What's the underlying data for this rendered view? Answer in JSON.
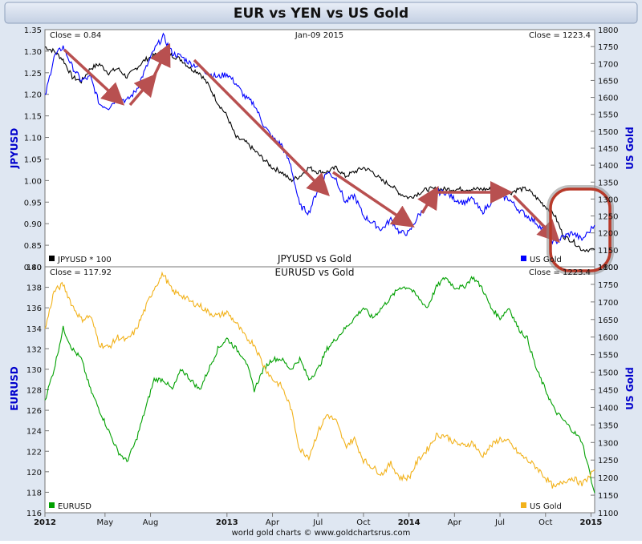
{
  "title": "EUR vs YEN vs US Gold",
  "footer": "world gold charts  © www.goldchartsrus.com",
  "colors": {
    "background": "#dfe7f2",
    "title_bar": "#c5d1e4",
    "plot_bg": "#ffffff",
    "jpy": "#000000",
    "eur": "#00a000",
    "gold_top": "#0000ff",
    "gold_bottom": "#f2b21b",
    "arrow": "#b85050",
    "ellipse": "#b83a2a",
    "axis_label": "#0000cc"
  },
  "x_axis": {
    "ticks": [
      "2012",
      "May",
      "Aug",
      "2013",
      "Apr",
      "Jul",
      "Oct",
      "2014",
      "Apr",
      "Jul",
      "Oct",
      "2015"
    ],
    "bold": [
      "2012",
      "2013",
      "2014",
      "2015"
    ]
  },
  "chart_data": [
    {
      "type": "line",
      "title": "JPYUSD vs Gold",
      "date_label": "Jan-09  2015",
      "left_close": "Close = 0.84",
      "right_close": "Close = 1223.4",
      "ylabel_left": "JPYUSD",
      "ylabel_right": "US Gold",
      "ylim_left": [
        0.8,
        1.35
      ],
      "ylim_right": [
        1100,
        1800
      ],
      "yticks_left": [
        "1.35",
        "1.30",
        "1.25",
        "1.20",
        "1.15",
        "1.10",
        "1.05",
        "1.00",
        "0.95",
        "0.90",
        "0.85",
        "0.80"
      ],
      "yticks_right": [
        "1800",
        "1750",
        "1700",
        "1650",
        "1600",
        "1550",
        "1500",
        "1450",
        "1400",
        "1350",
        "1300",
        "1250",
        "1200",
        "1150",
        "1100"
      ],
      "legend_left": "JPYUSD * 100",
      "legend_right": "US Gold",
      "x": [
        2012.0,
        2012.05,
        2012.1,
        2012.15,
        2012.2,
        2012.25,
        2012.3,
        2012.35,
        2012.4,
        2012.45,
        2012.5,
        2012.55,
        2012.6,
        2012.65,
        2012.7,
        2012.75,
        2012.8,
        2012.85,
        2012.9,
        2012.95,
        2013.0,
        2013.05,
        2013.1,
        2013.15,
        2013.2,
        2013.25,
        2013.3,
        2013.35,
        2013.4,
        2013.45,
        2013.5,
        2013.55,
        2013.6,
        2013.65,
        2013.7,
        2013.75,
        2013.8,
        2013.85,
        2013.9,
        2013.95,
        2014.0,
        2014.05,
        2014.1,
        2014.15,
        2014.2,
        2014.25,
        2014.3,
        2014.35,
        2014.4,
        2014.45,
        2014.5,
        2014.55,
        2014.6,
        2014.65,
        2014.7,
        2014.75,
        2014.8,
        2014.85,
        2014.9,
        2014.95,
        2015.02
      ],
      "series": [
        {
          "name": "JPYUSD * 100",
          "axis": "left",
          "values": [
            1.31,
            1.3,
            1.28,
            1.24,
            1.23,
            1.26,
            1.27,
            1.25,
            1.26,
            1.24,
            1.26,
            1.28,
            1.29,
            1.3,
            1.29,
            1.28,
            1.26,
            1.25,
            1.22,
            1.18,
            1.15,
            1.1,
            1.09,
            1.07,
            1.05,
            1.03,
            1.02,
            1.0,
            1.01,
            1.03,
            1.02,
            1.02,
            1.03,
            1.01,
            1.02,
            1.03,
            1.02,
            1.0,
            0.99,
            0.97,
            0.96,
            0.97,
            0.98,
            0.98,
            0.98,
            0.98,
            0.98,
            0.98,
            0.98,
            0.98,
            0.98,
            0.97,
            0.98,
            0.98,
            0.96,
            0.94,
            0.92,
            0.87,
            0.86,
            0.84,
            0.84
          ]
        },
        {
          "name": "US Gold",
          "axis": "right",
          "values": [
            1600,
            1720,
            1750,
            1690,
            1650,
            1660,
            1580,
            1570,
            1600,
            1590,
            1620,
            1680,
            1740,
            1780,
            1730,
            1720,
            1700,
            1690,
            1670,
            1660,
            1670,
            1640,
            1600,
            1580,
            1520,
            1480,
            1460,
            1400,
            1280,
            1260,
            1330,
            1380,
            1360,
            1290,
            1310,
            1250,
            1230,
            1210,
            1240,
            1200,
            1200,
            1250,
            1280,
            1320,
            1320,
            1300,
            1290,
            1300,
            1260,
            1290,
            1310,
            1300,
            1270,
            1250,
            1230,
            1200,
            1170,
            1190,
            1200,
            1180,
            1223
          ]
        }
      ],
      "annotations": {
        "arrows": 8,
        "circle": "Oct 2014 - Jan 2015"
      }
    },
    {
      "type": "line",
      "title": "EURUSD vs Gold",
      "left_close": "Close = 117.92",
      "right_close": "Close = 1223.4",
      "ylabel_left": "EURUSD",
      "ylabel_right": "US Gold",
      "ylim_left": [
        116,
        140
      ],
      "ylim_right": [
        1100,
        1800
      ],
      "yticks_left": [
        "140",
        "138",
        "136",
        "134",
        "132",
        "130",
        "128",
        "126",
        "124",
        "122",
        "120",
        "118",
        "116"
      ],
      "yticks_right": [
        "1800",
        "1750",
        "1700",
        "1650",
        "1600",
        "1550",
        "1500",
        "1450",
        "1400",
        "1350",
        "1300",
        "1250",
        "1200",
        "1150",
        "1100"
      ],
      "legend_left": "EURUSD",
      "legend_right": "US Gold",
      "x": [
        2012.0,
        2012.05,
        2012.1,
        2012.15,
        2012.2,
        2012.25,
        2012.3,
        2012.35,
        2012.4,
        2012.45,
        2012.5,
        2012.55,
        2012.6,
        2012.65,
        2012.7,
        2012.75,
        2012.8,
        2012.85,
        2012.9,
        2012.95,
        2013.0,
        2013.05,
        2013.1,
        2013.15,
        2013.2,
        2013.25,
        2013.3,
        2013.35,
        2013.4,
        2013.45,
        2013.5,
        2013.55,
        2013.6,
        2013.65,
        2013.7,
        2013.75,
        2013.8,
        2013.85,
        2013.9,
        2013.95,
        2014.0,
        2014.05,
        2014.1,
        2014.15,
        2014.2,
        2014.25,
        2014.3,
        2014.35,
        2014.4,
        2014.45,
        2014.5,
        2014.55,
        2014.6,
        2014.65,
        2014.7,
        2014.75,
        2014.8,
        2014.85,
        2014.9,
        2014.95,
        2015.02
      ],
      "series": [
        {
          "name": "EURUSD",
          "axis": "left",
          "values": [
            127,
            130,
            134,
            132,
            131,
            128,
            126,
            124,
            122,
            121,
            123,
            126,
            129,
            129,
            128,
            130,
            129,
            128,
            130,
            132,
            133,
            132,
            131,
            128,
            130,
            131,
            131,
            130,
            131,
            129,
            130,
            132,
            133,
            134,
            135,
            136,
            135,
            136,
            137,
            138,
            138,
            137,
            136,
            138,
            139,
            138,
            138,
            139,
            138,
            136,
            135,
            136,
            134,
            133,
            130,
            128,
            126,
            125,
            124,
            123,
            117.92
          ]
        },
        {
          "name": "US Gold",
          "axis": "right",
          "values": [
            1620,
            1730,
            1750,
            1690,
            1650,
            1660,
            1580,
            1570,
            1600,
            1590,
            1620,
            1680,
            1740,
            1780,
            1730,
            1720,
            1700,
            1690,
            1670,
            1660,
            1670,
            1640,
            1600,
            1580,
            1520,
            1480,
            1460,
            1400,
            1280,
            1260,
            1330,
            1380,
            1360,
            1290,
            1310,
            1250,
            1230,
            1210,
            1240,
            1200,
            1200,
            1250,
            1280,
            1320,
            1320,
            1300,
            1290,
            1300,
            1260,
            1290,
            1310,
            1300,
            1270,
            1250,
            1230,
            1200,
            1170,
            1190,
            1200,
            1180,
            1223
          ]
        }
      ]
    }
  ]
}
